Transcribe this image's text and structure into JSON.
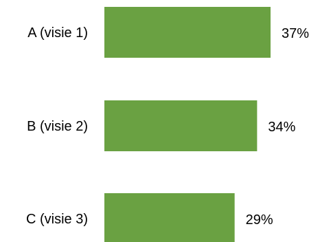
{
  "chart_data": {
    "type": "bar",
    "orientation": "horizontal",
    "categories": [
      "A (visie 1)",
      "B (visie 2)",
      "C (visie 3)"
    ],
    "values": [
      37,
      34,
      29
    ],
    "value_labels": [
      "37%",
      "34%",
      "29%"
    ],
    "unit": "%",
    "title": "",
    "xlabel": "",
    "ylabel": "",
    "xlim": [
      0,
      37
    ],
    "grid": false,
    "legend": "none",
    "bar_color": "#6aa142"
  }
}
